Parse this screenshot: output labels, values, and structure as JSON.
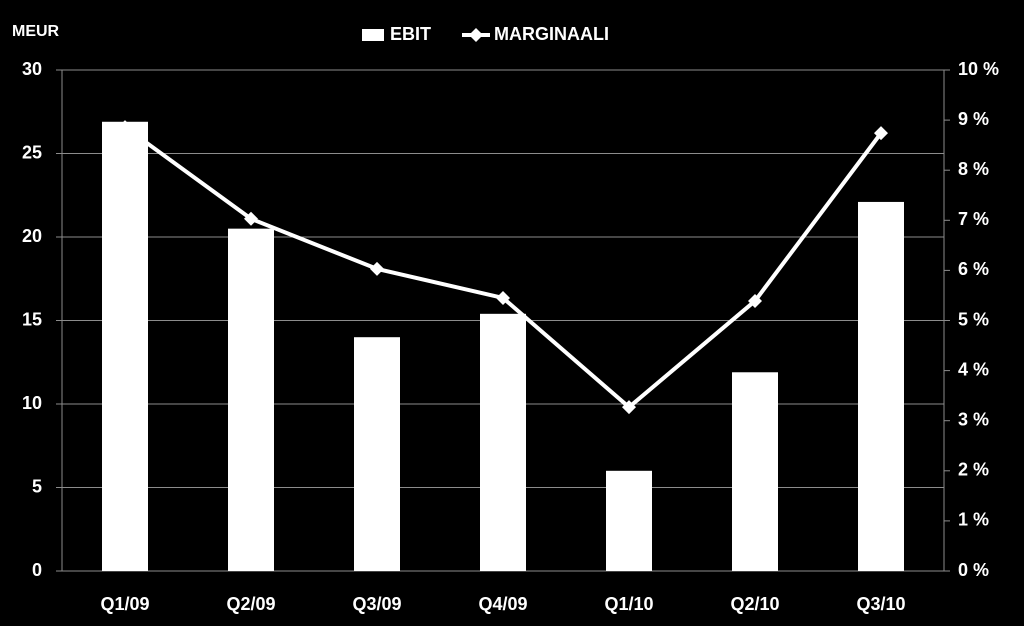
{
  "chart_data": {
    "type": "bar_line",
    "y_label": "MEUR",
    "categories": [
      "Q1/09",
      "Q2/09",
      "Q3/09",
      "Q4/09",
      "Q1/10",
      "Q2/10",
      "Q3/10"
    ],
    "series": [
      {
        "name": "EBIT",
        "type": "bar",
        "color": "#ffffff",
        "axis": "y",
        "values": [
          26.9,
          20.5,
          14.0,
          15.4,
          6.0,
          11.9,
          22.1
        ]
      },
      {
        "name": "MARGINAALI",
        "type": "line",
        "color": "#ffffff",
        "axis": "y2",
        "values": [
          8.86,
          7.03,
          6.03,
          5.45,
          3.27,
          5.39,
          8.74
        ]
      }
    ],
    "ylim": [
      0,
      30
    ],
    "yticks": [
      0,
      5,
      10,
      15,
      20,
      25,
      30
    ],
    "y2lim": [
      0,
      10
    ],
    "y2ticks": [
      {
        "value": 0,
        "label": "0 %"
      },
      {
        "value": 1,
        "label": "1 %"
      },
      {
        "value": 2,
        "label": "2 %"
      },
      {
        "value": 3,
        "label": "3 %"
      },
      {
        "value": 4,
        "label": "4 %"
      },
      {
        "value": 5,
        "label": "5 %"
      },
      {
        "value": 6,
        "label": "6 %"
      },
      {
        "value": 7,
        "label": "7 %"
      },
      {
        "value": 8,
        "label": "8 %"
      },
      {
        "value": 9,
        "label": "9 %"
      },
      {
        "value": 10,
        "label": "10 %"
      }
    ],
    "grid": true,
    "background": "#000000",
    "grid_color": "#8c8c8c"
  }
}
